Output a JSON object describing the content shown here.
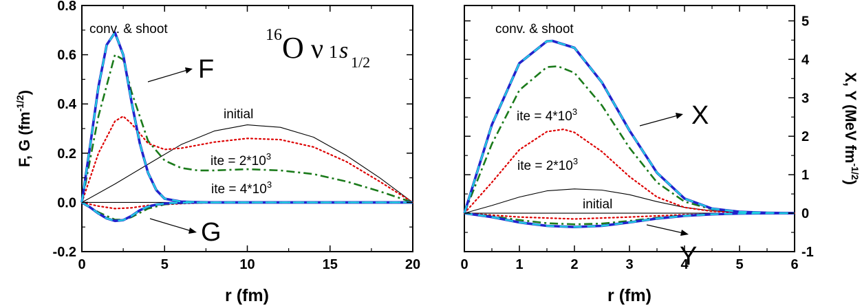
{
  "chart_data": [
    {
      "type": "line",
      "xlabel": "r  (fm)",
      "ylabel": "F, G  (fm",
      "ylabel_sup": "-1/2",
      "ylabel_end": ")",
      "xlim": [
        0,
        20
      ],
      "ylim": [
        -0.2,
        0.8
      ],
      "xticks": [
        "0",
        "5",
        "10",
        "15",
        "20"
      ],
      "yticks": [
        "-0.2",
        "0.0",
        "0.2",
        "0.4",
        "0.6",
        "0.8"
      ],
      "title_parts": {
        "mass": "16",
        "element": "O",
        "nu": "ν",
        "level": "1",
        "orbital": "s",
        "j": "1/2"
      },
      "annotations": {
        "conv": "conv. & shoot",
        "F": "F",
        "G": "G",
        "initial": "initial",
        "ite2": "ite = 2*10",
        "ite2_exp": "3",
        "ite4": "ite = 4*10",
        "ite4_exp": "3"
      },
      "series": [
        {
          "color": "#000000",
          "style": "solid",
          "x": [
            0,
            2,
            4,
            6,
            8,
            10,
            12,
            14,
            16,
            18,
            20
          ],
          "y": [
            0,
            0.075,
            0.155,
            0.235,
            0.29,
            0.315,
            0.305,
            0.265,
            0.19,
            0.1,
            0
          ]
        },
        {
          "color": "#000000",
          "style": "solid",
          "x": [
            0,
            20
          ],
          "y": [
            0,
            0
          ]
        },
        {
          "color": "#dd0000",
          "style": "dotted",
          "x": [
            0,
            1,
            2,
            2.5,
            3,
            4,
            5,
            6,
            8,
            10,
            12,
            14,
            16,
            18,
            20
          ],
          "y": [
            0,
            0.2,
            0.33,
            0.35,
            0.32,
            0.24,
            0.215,
            0.22,
            0.245,
            0.26,
            0.255,
            0.225,
            0.165,
            0.085,
            0
          ]
        },
        {
          "color": "#dd0000",
          "style": "dotted",
          "x": [
            0,
            1,
            2,
            3,
            4,
            6,
            8,
            12,
            16,
            20
          ],
          "y": [
            0,
            -0.015,
            -0.025,
            -0.022,
            -0.012,
            -0.005,
            0,
            0,
            0,
            0
          ]
        },
        {
          "color": "#1a7a1a",
          "style": "dashdot",
          "x": [
            0,
            1,
            2,
            2.5,
            3,
            4,
            5,
            6,
            7,
            8,
            10,
            12,
            14,
            16,
            18,
            20
          ],
          "y": [
            0,
            0.35,
            0.6,
            0.58,
            0.45,
            0.25,
            0.17,
            0.14,
            0.13,
            0.13,
            0.135,
            0.13,
            0.115,
            0.085,
            0.045,
            0
          ]
        },
        {
          "color": "#1a7a1a",
          "style": "dashdot",
          "x": [
            0,
            1,
            2,
            2.5,
            3,
            4,
            5,
            6,
            8,
            12,
            20
          ],
          "y": [
            0,
            -0.04,
            -0.07,
            -0.07,
            -0.06,
            -0.025,
            -0.008,
            -0.003,
            0,
            0,
            0
          ]
        },
        {
          "color": "#2222cc",
          "style": "solid-thick",
          "x": [
            0,
            0.5,
            1,
            1.5,
            2,
            2.5,
            3,
            3.5,
            4,
            4.5,
            5,
            6,
            7,
            8,
            10,
            12,
            16,
            20
          ],
          "y": [
            0,
            0.23,
            0.47,
            0.64,
            0.69,
            0.6,
            0.41,
            0.24,
            0.12,
            0.05,
            0.015,
            0.003,
            0.001,
            0,
            0,
            0,
            0,
            0
          ]
        },
        {
          "color": "#2222cc",
          "style": "solid-thick",
          "x": [
            0,
            0.5,
            1,
            1.5,
            2,
            2.5,
            3,
            3.5,
            4,
            4.5,
            5,
            5.5,
            6,
            7,
            8,
            10,
            12,
            16,
            20
          ],
          "y": [
            0,
            -0.02,
            -0.045,
            -0.065,
            -0.075,
            -0.072,
            -0.055,
            -0.032,
            -0.017,
            -0.009,
            -0.005,
            -0.002,
            -0.001,
            0,
            0,
            0,
            0,
            0,
            0
          ]
        },
        {
          "color": "#22d0e0",
          "style": "dashed-thick",
          "x": [
            0,
            0.5,
            1,
            1.5,
            2,
            2.5,
            3,
            3.5,
            4,
            4.5,
            5,
            6,
            7,
            8,
            10,
            12,
            16,
            20
          ],
          "y": [
            0,
            0.23,
            0.47,
            0.64,
            0.69,
            0.6,
            0.41,
            0.24,
            0.12,
            0.05,
            0.015,
            0.003,
            0.001,
            0,
            0,
            0,
            0,
            0
          ]
        },
        {
          "color": "#22d0e0",
          "style": "dashed-thick",
          "x": [
            0,
            0.5,
            1,
            1.5,
            2,
            2.5,
            3,
            3.5,
            4,
            4.5,
            5,
            5.5,
            6,
            7,
            8,
            10,
            12,
            16,
            20
          ],
          "y": [
            0,
            -0.02,
            -0.045,
            -0.065,
            -0.075,
            -0.072,
            -0.055,
            -0.032,
            -0.017,
            -0.009,
            -0.005,
            -0.002,
            -0.001,
            0,
            0,
            0,
            0,
            0,
            0
          ]
        }
      ]
    },
    {
      "type": "line",
      "xlabel": "r  (fm)",
      "ylabel": "X, Y  (MeV fm",
      "ylabel_sup": "-1/2",
      "ylabel_end": ")",
      "xlim": [
        0,
        6
      ],
      "ylim": [
        -1,
        5.4
      ],
      "xticks": [
        "0",
        "1",
        "2",
        "3",
        "4",
        "5",
        "6"
      ],
      "yticks": [
        "-1",
        "0",
        "1",
        "2",
        "3",
        "4",
        "5"
      ],
      "annotations": {
        "conv": "conv. & shoot",
        "X": "X",
        "Y": "Y",
        "initial": "initial",
        "ite2": "ite = 2*10",
        "ite2_exp": "3",
        "ite4": "ite = 4*10",
        "ite4_exp": "3"
      },
      "series": [
        {
          "color": "#000000",
          "style": "solid",
          "x": [
            0,
            0.5,
            1,
            1.5,
            2,
            2.5,
            3,
            3.5,
            4,
            4.5,
            5,
            5.5,
            6
          ],
          "y": [
            0,
            0.2,
            0.42,
            0.58,
            0.63,
            0.6,
            0.48,
            0.3,
            0.15,
            0.06,
            0.02,
            0.005,
            0
          ]
        },
        {
          "color": "#000000",
          "style": "solid",
          "x": [
            0,
            6
          ],
          "y": [
            0,
            0
          ]
        },
        {
          "color": "#dd0000",
          "style": "dotted",
          "x": [
            0,
            0.5,
            1,
            1.5,
            1.8,
            2,
            2.5,
            3,
            3.5,
            4,
            4.5,
            5,
            5.5,
            6
          ],
          "y": [
            0,
            0.8,
            1.65,
            2.12,
            2.18,
            2.1,
            1.6,
            0.95,
            0.42,
            0.15,
            0.05,
            0.015,
            0.005,
            0
          ]
        },
        {
          "color": "#dd0000",
          "style": "dotted",
          "x": [
            0,
            1,
            2,
            3,
            4,
            5,
            6
          ],
          "y": [
            0,
            -0.1,
            -0.15,
            -0.1,
            -0.04,
            -0.01,
            0
          ]
        },
        {
          "color": "#1a7a1a",
          "style": "dashdot",
          "x": [
            0,
            0.5,
            1,
            1.5,
            1.7,
            2,
            2.5,
            3,
            3.5,
            4,
            4.5,
            5,
            5.5,
            6
          ],
          "y": [
            0,
            1.8,
            3.2,
            3.8,
            3.82,
            3.65,
            2.8,
            1.7,
            0.8,
            0.3,
            0.1,
            0.03,
            0.01,
            0
          ]
        },
        {
          "color": "#1a7a1a",
          "style": "dashdot",
          "x": [
            0,
            0.5,
            1,
            1.5,
            2,
            2.5,
            3,
            3.5,
            4,
            4.5,
            5,
            6
          ],
          "y": [
            0,
            -0.08,
            -0.18,
            -0.26,
            -0.29,
            -0.27,
            -0.2,
            -0.12,
            -0.06,
            -0.025,
            -0.01,
            0
          ]
        },
        {
          "color": "#2222cc",
          "style": "solid-thick",
          "x": [
            0,
            0.5,
            1,
            1.5,
            1.6,
            2,
            2.5,
            3,
            3.5,
            4,
            4.5,
            5,
            5.5,
            6
          ],
          "y": [
            0,
            2.3,
            3.9,
            4.47,
            4.48,
            4.3,
            3.4,
            2.15,
            1.05,
            0.38,
            0.12,
            0.035,
            0.01,
            0
          ]
        },
        {
          "color": "#2222cc",
          "style": "solid-thick",
          "x": [
            0,
            0.5,
            1,
            1.5,
            2,
            2.5,
            3,
            3.5,
            4,
            4.5,
            5,
            5.5,
            6
          ],
          "y": [
            0,
            -0.1,
            -0.24,
            -0.33,
            -0.36,
            -0.33,
            -0.24,
            -0.14,
            -0.07,
            -0.03,
            -0.01,
            -0.003,
            0
          ]
        },
        {
          "color": "#22d0e0",
          "style": "dashed-thick",
          "x": [
            0,
            0.5,
            1,
            1.5,
            1.6,
            2,
            2.5,
            3,
            3.5,
            4,
            4.5,
            5,
            5.5,
            6
          ],
          "y": [
            0,
            2.3,
            3.9,
            4.47,
            4.48,
            4.3,
            3.4,
            2.15,
            1.05,
            0.38,
            0.12,
            0.035,
            0.01,
            0
          ]
        },
        {
          "color": "#22d0e0",
          "style": "dashed-thick",
          "x": [
            0,
            0.5,
            1,
            1.5,
            2,
            2.5,
            3,
            3.5,
            4,
            4.5,
            5,
            5.5,
            6
          ],
          "y": [
            0,
            -0.1,
            -0.24,
            -0.33,
            -0.36,
            -0.33,
            -0.24,
            -0.14,
            -0.07,
            -0.03,
            -0.01,
            -0.003,
            0
          ]
        }
      ]
    }
  ]
}
